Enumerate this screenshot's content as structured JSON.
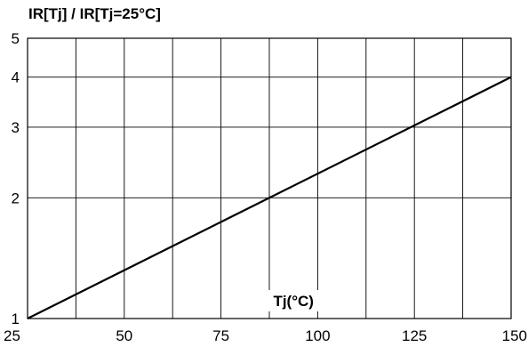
{
  "chart_data": {
    "type": "line",
    "ylabel": "IR[Tj] / IR[Tj=25°C]",
    "xlabel": "Tj(°C)",
    "title": "",
    "xlim": [
      25,
      150
    ],
    "ylim": [
      1,
      5
    ],
    "yscale": "log",
    "grid": true,
    "x_ticks": [
      25,
      50,
      75,
      100,
      125,
      150
    ],
    "x_tick_labels": [
      "25",
      "50",
      "75",
      "100",
      "125",
      "150"
    ],
    "x_gridlines": [
      37.5,
      50,
      62.5,
      75,
      87.5,
      100,
      112.5,
      125,
      137.5
    ],
    "y_ticks": [
      1,
      2,
      3,
      4,
      5
    ],
    "y_tick_labels": [
      "1",
      "2",
      "3",
      "4",
      "5"
    ],
    "series": [
      {
        "x": [
          25,
          150
        ],
        "y": [
          1,
          4
        ],
        "color": "#000000"
      }
    ]
  }
}
